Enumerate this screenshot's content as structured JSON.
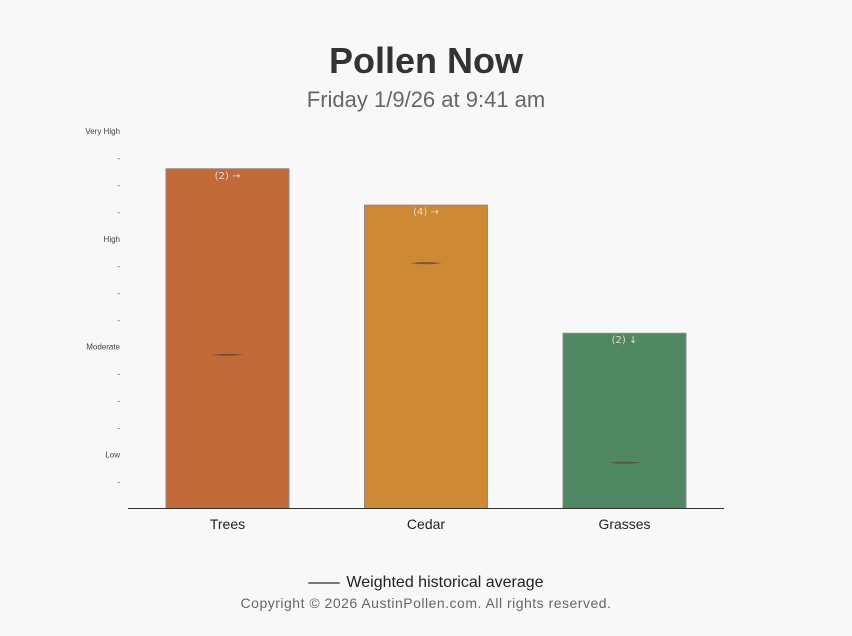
{
  "title": "Pollen Now",
  "subtitle": "Friday 1/9/26 at 9:41 am",
  "legend": {
    "label": "Weighted historical average"
  },
  "footer": {
    "copyright": "Copyright © 2026 AustinPollen.com.  All rights reserved."
  },
  "chart_data": {
    "type": "bar",
    "categories": [
      "Trees",
      "Cedar",
      "Grasses"
    ],
    "values": [
      12.6,
      11.25,
      6.5
    ],
    "historical_average": [
      5.7,
      9.1,
      1.7
    ],
    "bar_labels": [
      "(2) →",
      "(4) →",
      "(2) ↓"
    ],
    "colors": [
      "#c26a38",
      "#ce8934",
      "#508863"
    ],
    "ylim": [
      0,
      14
    ],
    "yticks": [
      {
        "value": 14,
        "label": "Very High"
      },
      {
        "value": 13,
        "label": "-"
      },
      {
        "value": 12,
        "label": "-"
      },
      {
        "value": 11,
        "label": "-"
      },
      {
        "value": 10,
        "label": "High"
      },
      {
        "value": 9,
        "label": "-"
      },
      {
        "value": 8,
        "label": "-"
      },
      {
        "value": 7,
        "label": "-"
      },
      {
        "value": 6,
        "label": "Moderate"
      },
      {
        "value": 5,
        "label": "-"
      },
      {
        "value": 4,
        "label": "-"
      },
      {
        "value": 3,
        "label": "-"
      },
      {
        "value": 2,
        "label": "Low"
      },
      {
        "value": 1,
        "label": "-"
      }
    ],
    "xlabel": "",
    "ylabel": "",
    "grid": false
  }
}
